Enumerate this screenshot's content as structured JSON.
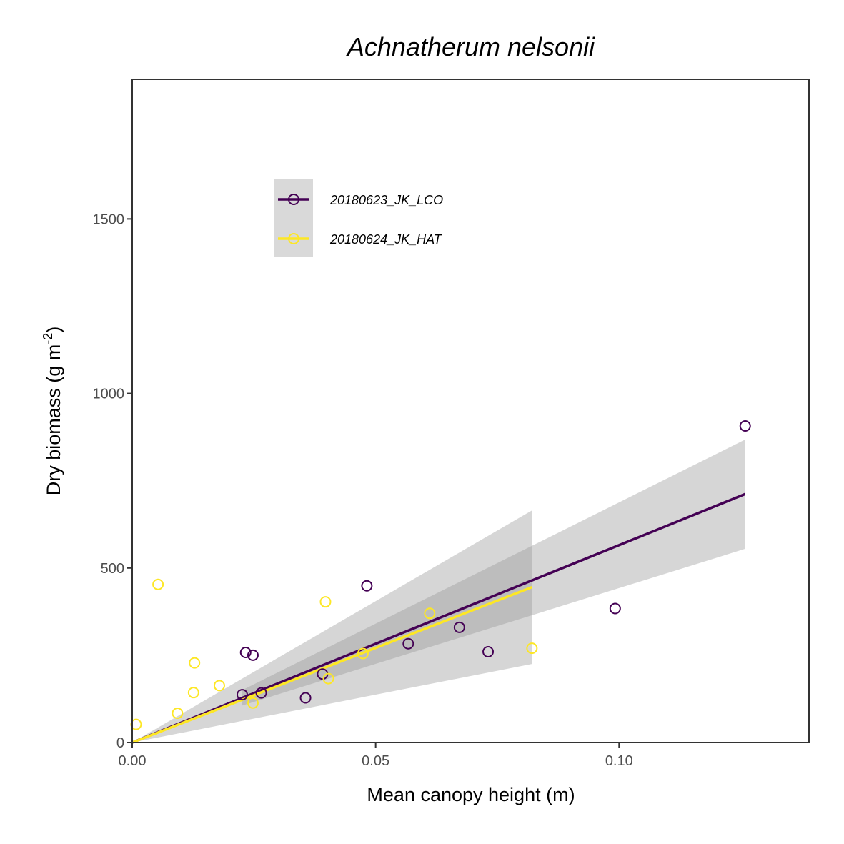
{
  "chart_data": {
    "type": "scatter",
    "title": "Achnatherum nelsonii",
    "xlabel": "Mean canopy height (m)",
    "ylabel_main": "Dry biomass (g m",
    "ylabel_sup": "-2",
    "ylabel_end": ")",
    "xlim": [
      0,
      0.139
    ],
    "ylim": [
      0,
      1900
    ],
    "x_ticks": [
      0.0,
      0.05,
      0.1
    ],
    "x_tick_labels": [
      "0.00",
      "0.05",
      "0.10"
    ],
    "y_ticks": [
      0,
      500,
      1000,
      1500
    ],
    "y_tick_labels": [
      "0",
      "500",
      "1000",
      "1500"
    ],
    "grid": false,
    "legend_position": "top-left",
    "series": [
      {
        "name": "20180623_JK_LCO",
        "color": "#440154",
        "points": [
          {
            "x": 0.0226,
            "y": 137
          },
          {
            "x": 0.0233,
            "y": 258
          },
          {
            "x": 0.0248,
            "y": 250
          },
          {
            "x": 0.0265,
            "y": 142
          },
          {
            "x": 0.0356,
            "y": 128
          },
          {
            "x": 0.0391,
            "y": 196
          },
          {
            "x": 0.0482,
            "y": 449
          },
          {
            "x": 0.0567,
            "y": 283
          },
          {
            "x": 0.0672,
            "y": 330
          },
          {
            "x": 0.0731,
            "y": 260
          },
          {
            "x": 0.0992,
            "y": 384
          },
          {
            "x": 0.1259,
            "y": 907
          }
        ],
        "fit": {
          "x_start": 0.0,
          "x_end": 0.1259,
          "y_start": 0,
          "y_end": 712
        },
        "ci_band": {
          "x_start": 0.0226,
          "x_end": 0.1259,
          "lower_start": 106,
          "upper_start": 150,
          "lower_end": 555,
          "upper_end": 868
        }
      },
      {
        "name": "20180624_JK_HAT",
        "color": "#FDE725",
        "points": [
          {
            "x": 0.0008,
            "y": 52
          },
          {
            "x": 0.0053,
            "y": 453
          },
          {
            "x": 0.0093,
            "y": 84
          },
          {
            "x": 0.0126,
            "y": 143
          },
          {
            "x": 0.0128,
            "y": 228
          },
          {
            "x": 0.0179,
            "y": 163
          },
          {
            "x": 0.0248,
            "y": 113
          },
          {
            "x": 0.0397,
            "y": 403
          },
          {
            "x": 0.0403,
            "y": 183
          },
          {
            "x": 0.0474,
            "y": 255
          },
          {
            "x": 0.0611,
            "y": 370
          },
          {
            "x": 0.0821,
            "y": 270
          }
        ],
        "fit": {
          "x_start": 0.0,
          "x_end": 0.0821,
          "y_start": 0,
          "y_end": 445
        },
        "ci_band": {
          "x_start": 0.0,
          "x_end": 0.0821,
          "lower_start": 0,
          "upper_start": 0,
          "lower_end": 225,
          "upper_end": 665
        }
      }
    ]
  }
}
